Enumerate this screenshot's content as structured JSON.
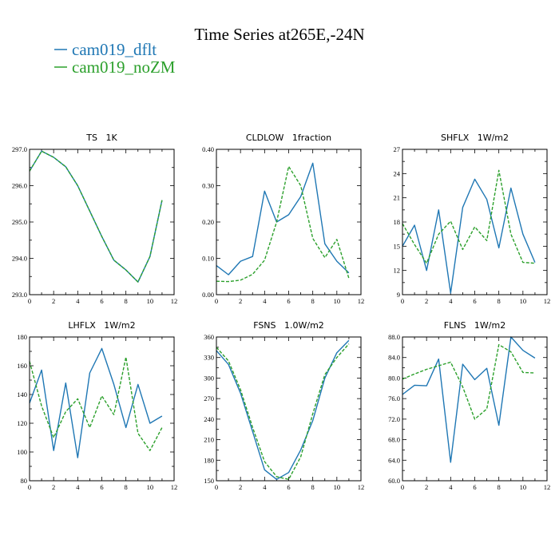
{
  "figure": {
    "title": "Time Series at265E,-24N",
    "legend": [
      {
        "label": "cam019_dflt",
        "color": "#1f77b4",
        "dash": "solid"
      },
      {
        "label": "cam019_noZM",
        "color": "#2ca02c",
        "dash": "dashed"
      }
    ]
  },
  "chart_data": [
    {
      "type": "line",
      "title": "TS   1K",
      "xlim": [
        0,
        12
      ],
      "xticks": [
        0,
        2,
        4,
        6,
        8,
        10,
        12
      ],
      "ylim": [
        293.0,
        297.0
      ],
      "yticks": [
        293.0,
        294.0,
        295.0,
        296.0,
        297.0
      ],
      "ytick_labels": [
        "293.0",
        "294.0",
        "295.0",
        "296.0",
        "297.0"
      ],
      "x": [
        0,
        1,
        2,
        3,
        4,
        5,
        6,
        7,
        8,
        9,
        10,
        11
      ],
      "series": [
        {
          "name": "cam019_dflt",
          "values": [
            296.4,
            296.95,
            296.78,
            296.52,
            296.0,
            295.3,
            294.6,
            293.95,
            293.68,
            293.35,
            294.05,
            295.6
          ]
        },
        {
          "name": "cam019_noZM",
          "values": [
            296.4,
            296.95,
            296.78,
            296.52,
            296.0,
            295.3,
            294.6,
            293.95,
            293.68,
            293.35,
            294.05,
            295.6
          ]
        }
      ]
    },
    {
      "type": "line",
      "title": "CLDLOW   1fraction",
      "xlim": [
        0,
        12
      ],
      "xticks": [
        0,
        2,
        4,
        6,
        8,
        10,
        12
      ],
      "ylim": [
        0.0,
        0.4
      ],
      "yticks": [
        0.0,
        0.1,
        0.2,
        0.3,
        0.4
      ],
      "ytick_labels": [
        "0.00",
        "0.10",
        "0.20",
        "0.30",
        "0.40"
      ],
      "x": [
        0,
        1,
        2,
        3,
        4,
        5,
        6,
        7,
        8,
        9,
        10,
        11
      ],
      "series": [
        {
          "name": "cam019_dflt",
          "values": [
            0.08,
            0.055,
            0.092,
            0.105,
            0.285,
            0.2,
            0.22,
            0.27,
            0.362,
            0.14,
            0.092,
            0.06
          ]
        },
        {
          "name": "cam019_noZM",
          "values": [
            0.037,
            0.036,
            0.04,
            0.056,
            0.095,
            0.2,
            0.353,
            0.3,
            0.155,
            0.102,
            0.152,
            0.045
          ]
        }
      ]
    },
    {
      "type": "line",
      "title": "SHFLX   1W/m2",
      "xlim": [
        0,
        12
      ],
      "xticks": [
        0,
        2,
        4,
        6,
        8,
        10,
        12
      ],
      "ylim": [
        9,
        27
      ],
      "yticks": [
        9,
        12,
        15,
        18,
        21,
        24,
        27
      ],
      "ytick_labels": [
        "9",
        "12",
        "15",
        "18",
        "21",
        "24",
        "27"
      ],
      "x": [
        0,
        1,
        2,
        3,
        4,
        5,
        6,
        7,
        8,
        9,
        10,
        11
      ],
      "series": [
        {
          "name": "cam019_dflt",
          "values": [
            15.0,
            17.6,
            12.0,
            19.5,
            9.2,
            19.8,
            23.3,
            20.8,
            14.8,
            22.2,
            16.5,
            13.0
          ]
        },
        {
          "name": "cam019_noZM",
          "values": [
            17.8,
            15.2,
            12.9,
            16.5,
            18.1,
            14.6,
            17.4,
            15.7,
            24.4,
            16.5,
            13.0,
            12.9
          ]
        }
      ]
    },
    {
      "type": "line",
      "title": "LHFLX   1W/m2",
      "xlim": [
        0,
        12
      ],
      "xticks": [
        0,
        2,
        4,
        6,
        8,
        10,
        12
      ],
      "ylim": [
        80,
        180
      ],
      "yticks": [
        80,
        100,
        120,
        140,
        160,
        180
      ],
      "ytick_labels": [
        "80",
        "100",
        "120",
        "140",
        "160",
        "180"
      ],
      "x": [
        0,
        1,
        2,
        3,
        4,
        5,
        6,
        7,
        8,
        9,
        10,
        11
      ],
      "series": [
        {
          "name": "cam019_dflt",
          "values": [
            134,
            157,
            101,
            148,
            96,
            155,
            172,
            147,
            117,
            147,
            120,
            125
          ]
        },
        {
          "name": "cam019_noZM",
          "values": [
            163,
            132,
            110,
            128,
            137,
            117,
            139,
            126,
            166,
            113,
            101,
            117
          ]
        }
      ]
    },
    {
      "type": "line",
      "title": "FSNS   1.0W/m2",
      "xlim": [
        0,
        12
      ],
      "xticks": [
        0,
        2,
        4,
        6,
        8,
        10,
        12
      ],
      "ylim": [
        150,
        360
      ],
      "yticks": [
        150,
        180,
        210,
        240,
        270,
        300,
        330,
        360
      ],
      "ytick_labels": [
        "150",
        "180",
        "210",
        "240",
        "270",
        "300",
        "330",
        "360"
      ],
      "x": [
        0,
        1,
        2,
        3,
        4,
        5,
        6,
        7,
        8,
        9,
        10,
        11
      ],
      "series": [
        {
          "name": "cam019_dflt",
          "values": [
            340,
            320,
            278,
            222,
            166,
            152,
            162,
            195,
            238,
            300,
            337,
            355
          ]
        },
        {
          "name": "cam019_noZM",
          "values": [
            345,
            325,
            283,
            228,
            178,
            156,
            152,
            185,
            248,
            305,
            330,
            350
          ]
        }
      ]
    },
    {
      "type": "line",
      "title": "FLNS   1W/m2",
      "xlim": [
        0,
        12
      ],
      "xticks": [
        0,
        2,
        4,
        6,
        8,
        10,
        12
      ],
      "ylim": [
        60.0,
        88.0
      ],
      "yticks": [
        60.0,
        64.0,
        68.0,
        72.0,
        76.0,
        80.0,
        84.0,
        88.0
      ],
      "ytick_labels": [
        "60.0",
        "64.0",
        "68.0",
        "72.0",
        "76.0",
        "80.0",
        "84.0",
        "88.0"
      ],
      "x": [
        0,
        1,
        2,
        3,
        4,
        5,
        6,
        7,
        8,
        9,
        10,
        11
      ],
      "series": [
        {
          "name": "cam019_dflt",
          "values": [
            76.8,
            78.6,
            78.5,
            83.7,
            63.6,
            82.7,
            79.7,
            81.9,
            70.8,
            88.0,
            85.4,
            83.9
          ]
        },
        {
          "name": "cam019_noZM",
          "values": [
            79.8,
            80.8,
            81.7,
            82.4,
            83.1,
            78.3,
            72.0,
            74.0,
            86.5,
            85.1,
            81.1,
            81.0
          ]
        }
      ]
    }
  ]
}
